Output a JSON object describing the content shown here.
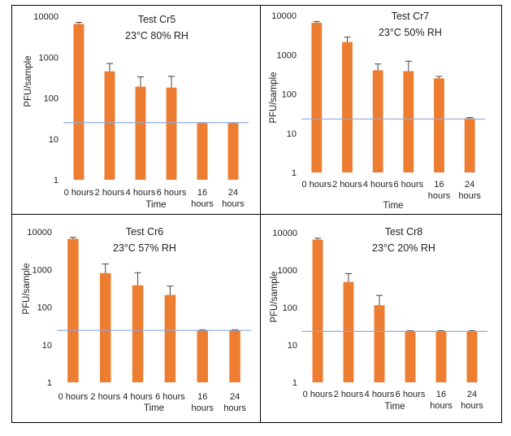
{
  "colors": {
    "bar": "#ED7D31",
    "threshold": "#8FAADC",
    "panel_border": "#000000"
  },
  "chart_data": [
    {
      "id": "cr5",
      "type": "bar",
      "yscale": "log",
      "ylim": [
        1,
        10000
      ],
      "title": "Test Cr5",
      "subtitle": "23°C 80% RH",
      "xlabel": "Time",
      "ylabel": "PFU/sample",
      "yticks": [
        "1",
        "10",
        "100",
        "1000",
        "10000"
      ],
      "categories": [
        [
          "0 hours"
        ],
        [
          "2 hours"
        ],
        [
          "4 hours"
        ],
        [
          "6 hours"
        ],
        [
          "16",
          "hours"
        ],
        [
          "24",
          "hours"
        ]
      ],
      "values": [
        6500,
        450,
        190,
        180,
        24,
        24
      ],
      "error_upper": [
        7100,
        700,
        330,
        340,
        25,
        25
      ],
      "threshold": 25
    },
    {
      "id": "cr7",
      "type": "bar",
      "yscale": "log",
      "ylim": [
        1,
        10000
      ],
      "title": "Test Cr7",
      "subtitle": "23°C 50% RH",
      "xlabel": "Time",
      "ylabel": "PFU/sample",
      "yticks": [
        "1",
        "10",
        "100",
        "1000",
        "10000"
      ],
      "categories": [
        [
          "0 hours"
        ],
        [
          "2 hours"
        ],
        [
          "4 hours"
        ],
        [
          "6 hours"
        ],
        [
          "16",
          "hours"
        ],
        [
          "24",
          "hours"
        ]
      ],
      "values": [
        6500,
        2100,
        400,
        380,
        250,
        24
      ],
      "error_upper": [
        7000,
        2800,
        580,
        680,
        280,
        25
      ],
      "threshold": 23
    },
    {
      "id": "cr6",
      "type": "bar",
      "yscale": "log",
      "ylim": [
        1,
        10000
      ],
      "title": "Test Cr6",
      "subtitle": "23°C 57% RH",
      "xlabel": "Time",
      "ylabel": "PFU/sample",
      "yticks": [
        "1",
        "10",
        "100",
        "1000",
        "10000"
      ],
      "categories": [
        [
          "0 hours"
        ],
        [
          "2 hours"
        ],
        [
          "4 hours"
        ],
        [
          "6 hours"
        ],
        [
          "16",
          "hours"
        ],
        [
          "24",
          "hours"
        ]
      ],
      "values": [
        6500,
        800,
        380,
        210,
        24,
        24
      ],
      "error_upper": [
        7100,
        1400,
        820,
        360,
        25,
        25
      ],
      "threshold": 24
    },
    {
      "id": "cr8",
      "type": "bar",
      "yscale": "log",
      "ylim": [
        1,
        10000
      ],
      "title": "Test Cr8",
      "subtitle": "23°C 20% RH",
      "xlabel": "Time",
      "ylabel": "PFU/sample",
      "yticks": [
        "1",
        "10",
        "100",
        "1000",
        "10000"
      ],
      "categories": [
        [
          "0 hours"
        ],
        [
          "2 hours"
        ],
        [
          "4 hours"
        ],
        [
          "6 hours"
        ],
        [
          "16",
          "hours"
        ],
        [
          "24",
          "hours"
        ]
      ],
      "values": [
        6500,
        480,
        115,
        23,
        23,
        23
      ],
      "error_upper": [
        7100,
        800,
        210,
        24,
        24,
        24
      ],
      "threshold": 23
    }
  ]
}
